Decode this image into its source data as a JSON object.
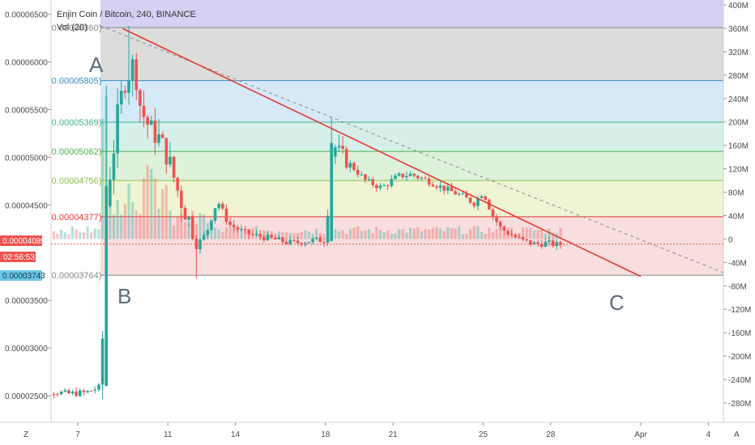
{
  "header": {
    "title": "Enjin Coin / Bitcoin, 240, BINANCE",
    "volume_label": "Vol (20)"
  },
  "price_badges": {
    "last_price": "0.00004089",
    "countdown": "02:56:53",
    "fib_base_price": "0.00003743"
  },
  "point_labels": [
    "A",
    "B",
    "C"
  ],
  "bottom_bar": {
    "left_button": "Z",
    "right_button": "A"
  },
  "colors": {
    "up": "#26a69a",
    "down": "#ef5350",
    "trendline": "#e53935",
    "last_price": "#ef5350",
    "fib_base_badge": "#6ec6e6"
  },
  "chart_data": {
    "type": "candlestick",
    "title": "Enjin Coin / Bitcoin, 240, BINANCE",
    "x_ticks": [
      "7",
      "11",
      "14",
      "18",
      "21",
      "25",
      "28",
      "Apr",
      "4"
    ],
    "left_axis": {
      "ticks": [
        "0.00006500",
        "0.00006000",
        "0.00005500",
        "0.00005000",
        "0.00004500",
        "0.00003500",
        "0.00003000",
        "0.00002500"
      ],
      "values": [
        6.5e-05,
        6e-05,
        5.5e-05,
        5e-05,
        4.5e-05,
        3.5e-05,
        3e-05,
        2.5e-05
      ],
      "range": [
        2.22e-05,
        6.65e-05
      ]
    },
    "right_axis": {
      "label": "",
      "ticks": [
        "400M",
        "360M",
        "320M",
        "280M",
        "240M",
        "200M",
        "160M",
        "120M",
        "80M",
        "40M",
        "0",
        "-40M",
        "-80M",
        "-120M",
        "-160M",
        "-200M",
        "-240M",
        "-280M"
      ],
      "values": [
        400,
        360,
        320,
        280,
        240,
        200,
        160,
        120,
        80,
        40,
        0,
        -40,
        -80,
        -120,
        -160,
        -200,
        -240,
        -280
      ]
    },
    "fib_levels": [
      {
        "label": "0.00006360",
        "value": 6.36e-05,
        "line": "#888888",
        "fill": "#dcdcdc"
      },
      {
        "label": "0.00005805",
        "value": 5.805e-05,
        "line": "#3a8fc2",
        "fill": "#d6e9f7"
      },
      {
        "label": "0.00005369",
        "value": 5.369e-05,
        "line": "#3fb28a",
        "fill": "#d6efe9"
      },
      {
        "label": "0.00005062",
        "value": 5.062e-05,
        "line": "#4caf50",
        "fill": "#def1da"
      },
      {
        "label": "0.00004756",
        "value": 4.756e-05,
        "line": "#8bc34a",
        "fill": "#eef4d4"
      },
      {
        "label": "0.00004377",
        "value": 4.377e-05,
        "line": "#e53935",
        "fill": "#f8dede"
      },
      {
        "label": "0.00003764",
        "value": 3.764e-05,
        "line": "#888888",
        "fill": "#f3cfcf"
      }
    ],
    "fib_top_band_fill": "#d6d0f2",
    "trendline_solid": {
      "start": [
        "Mar 9",
        6.35e-05
      ],
      "end": [
        "Apr 1",
        3.75e-05
      ]
    },
    "trendline_dashed": {
      "start": [
        "Mar 8",
        6.38e-05
      ],
      "end": [
        "Apr 5",
        3.76e-05
      ]
    },
    "candles_summary": [
      {
        "period": "Mar 5-7",
        "open": 2.6e-05,
        "high": 2.75e-05,
        "low": 2.43e-05,
        "close": 2.52e-05
      },
      {
        "period": "Mar 8",
        "open": 2.52e-05,
        "high": 5.75e-05,
        "low": 2.48e-05,
        "close": 5.6e-05
      },
      {
        "period": "Mar 9 peak",
        "open": 5.6e-05,
        "high": 6.38e-05,
        "low": 4.5e-05,
        "close": 5.4e-05
      },
      {
        "period": "Mar 12 low",
        "open": 4.4e-05,
        "high": 4.8e-05,
        "low": 3.73e-05,
        "close": 4.05e-05
      },
      {
        "period": "Mar 18 spike",
        "open": 4.12e-05,
        "high": 5.42e-05,
        "low": 4.05e-05,
        "close": 5.15e-05
      },
      {
        "period": "Mar 25",
        "open": 4.32e-05,
        "high": 4.7e-05,
        "low": 4.25e-05,
        "close": 4.65e-05
      },
      {
        "period": "Mar 29 last",
        "open": 4.08e-05,
        "high": 4.14e-05,
        "low": 4.02e-05,
        "close": 4.089e-05
      }
    ]
  }
}
